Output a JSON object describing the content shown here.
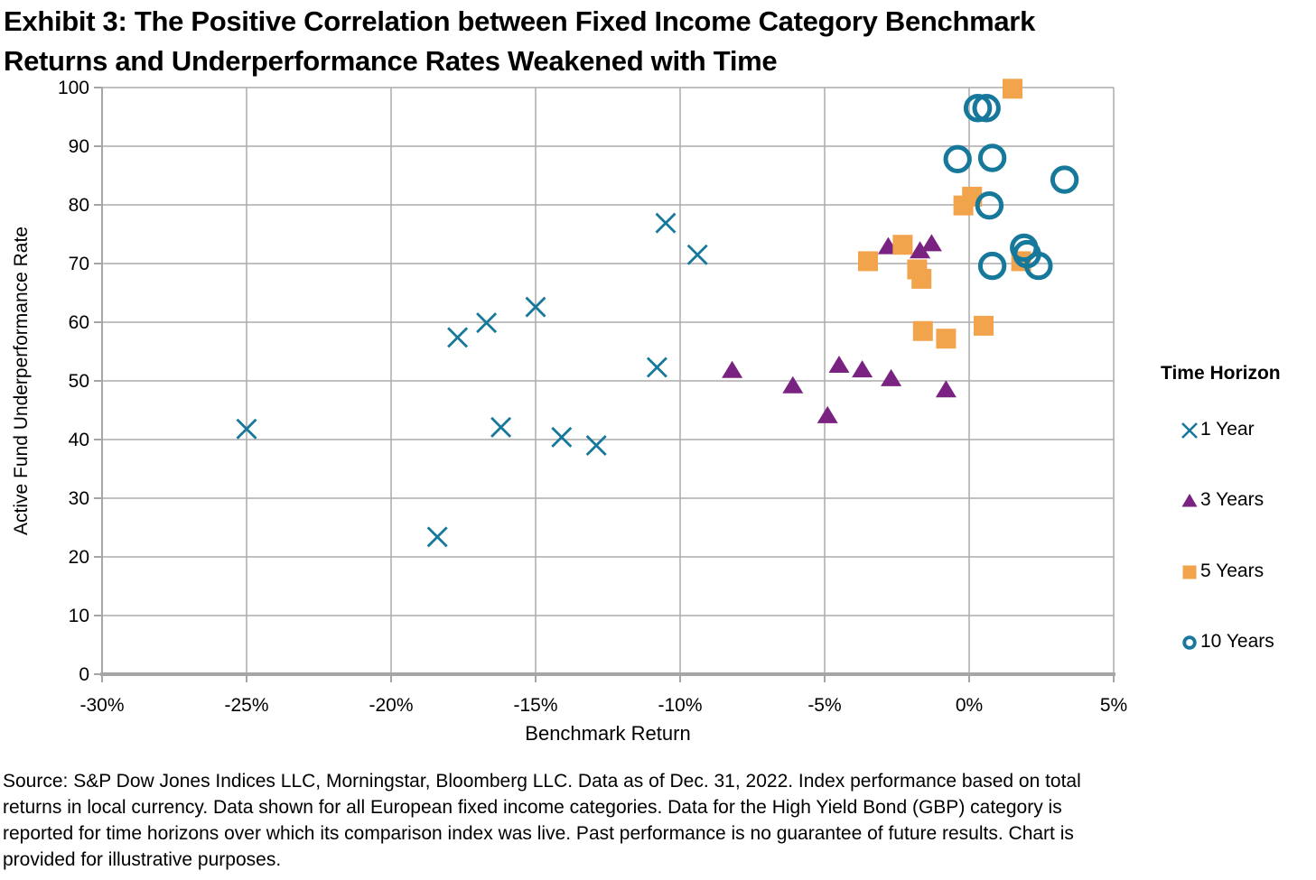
{
  "title": {
    "line1": "Exhibit 3: The Positive Correlation between Fixed Income Category Benchmark",
    "line2": "Returns and Underperformance Rates Weakened with Time"
  },
  "source": {
    "line1": "Source: S&P Dow Jones Indices LLC, Morningstar, Bloomberg LLC. Data as of Dec. 31, 2022. Index performance based on total",
    "line2": "returns in local currency. Data shown for all European fixed income categories. Data for the High Yield Bond (GBP) category is",
    "line3": "reported for time horizons over which its comparison index was live. Past performance is no guarantee of future results. Chart is",
    "line4": "provided for illustrative purposes."
  },
  "chart_data": {
    "type": "scatter",
    "title": "Exhibit 3: The Positive Correlation between Fixed Income Category Benchmark Returns and Underperformance Rates Weakened with Time",
    "xlabel": "Benchmark Return",
    "ylabel": "Active Fund Underperformance Rate",
    "legend_title": "Time Horizon",
    "legend_position": "right",
    "grid": true,
    "xlim": [
      -30,
      5
    ],
    "ylim": [
      0,
      100
    ],
    "x_ticks": [
      -30,
      -25,
      -20,
      -15,
      -10,
      -5,
      0,
      5
    ],
    "x_tick_labels": [
      "-30%",
      "-25%",
      "-20%",
      "-15%",
      "-10%",
      "-5%",
      "0%",
      "5%"
    ],
    "y_ticks": [
      0,
      10,
      20,
      30,
      40,
      50,
      60,
      70,
      80,
      90,
      100
    ],
    "y_tick_labels": [
      "0",
      "10",
      "20",
      "30",
      "40",
      "50",
      "60",
      "70",
      "80",
      "90",
      "100"
    ],
    "grid_color": "#ACACAC",
    "axis_color": "#A6A6A6",
    "series": [
      {
        "name": "1 Year",
        "marker": "x",
        "color": "#16789B",
        "points": [
          [
            -25.0,
            41.8
          ],
          [
            -18.4,
            23.4
          ],
          [
            -17.7,
            57.4
          ],
          [
            -16.7,
            59.9
          ],
          [
            -16.2,
            42.1
          ],
          [
            -15.0,
            62.6
          ],
          [
            -14.1,
            40.4
          ],
          [
            -12.9,
            39.0
          ],
          [
            -10.8,
            52.3
          ],
          [
            -10.5,
            76.9
          ],
          [
            -9.4,
            71.5
          ]
        ]
      },
      {
        "name": "3 Years",
        "marker": "triangle",
        "color": "#7A2282",
        "points": [
          [
            -8.2,
            51.8
          ],
          [
            -6.1,
            49.2
          ],
          [
            -4.9,
            44.1
          ],
          [
            -4.5,
            52.7
          ],
          [
            -3.7,
            51.9
          ],
          [
            -2.8,
            72.9
          ],
          [
            -2.7,
            50.4
          ],
          [
            -1.7,
            72.2
          ],
          [
            -1.3,
            73.4
          ],
          [
            -0.8,
            48.5
          ]
        ]
      },
      {
        "name": "5 Years",
        "marker": "square",
        "color": "#F2A44D",
        "points": [
          [
            -3.5,
            70.4
          ],
          [
            -2.3,
            73.2
          ],
          [
            -1.8,
            69.0
          ],
          [
            -1.65,
            67.4
          ],
          [
            -1.6,
            58.5
          ],
          [
            -0.8,
            57.2
          ],
          [
            -0.2,
            79.9
          ],
          [
            0.1,
            81.4
          ],
          [
            0.5,
            59.4
          ],
          [
            1.5,
            99.8
          ],
          [
            1.8,
            70.4
          ]
        ]
      },
      {
        "name": "10 Years",
        "marker": "circle-open",
        "color": "#16789B",
        "points": [
          [
            -0.4,
            87.8
          ],
          [
            0.3,
            96.5
          ],
          [
            0.6,
            96.5
          ],
          [
            0.7,
            79.9
          ],
          [
            0.8,
            88.0
          ],
          [
            0.8,
            69.6
          ],
          [
            1.9,
            72.7
          ],
          [
            2.0,
            71.6
          ],
          [
            2.4,
            69.6
          ],
          [
            3.3,
            84.3
          ]
        ]
      }
    ]
  }
}
